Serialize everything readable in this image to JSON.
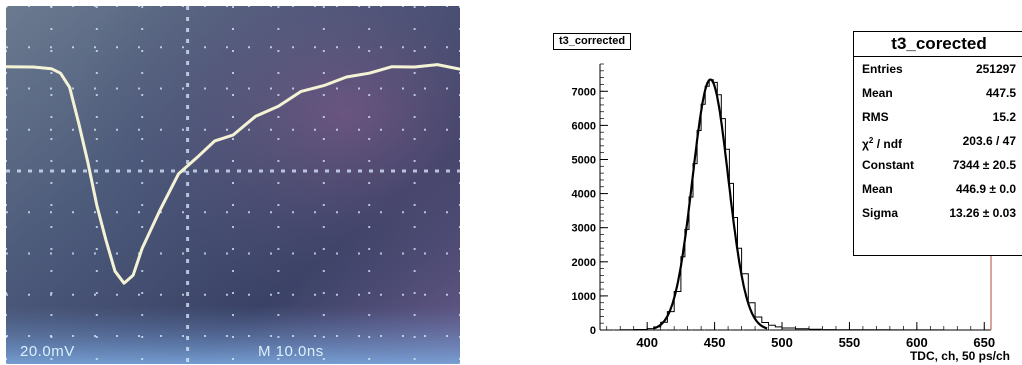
{
  "colors": {
    "scope_bg": "#3a4b6a",
    "scope_trace": "#f4f3d6",
    "scope_grid": "#dcecff",
    "hist_line": "#000000",
    "fit_line": "#000000",
    "axis_accent": "#b34a3a"
  },
  "scope": {
    "volts_readout": "20.0mV",
    "time_readout": "M 10.0ns"
  },
  "histogram": {
    "title_tag": "t3_corrected",
    "x_axis_label": "TDC, ch, 50 ps/ch"
  },
  "stats": {
    "title": "t3_corected",
    "rows": [
      {
        "label": "Entries",
        "value": "251297"
      },
      {
        "label": "Mean",
        "value": "447.5"
      },
      {
        "label": "RMS",
        "value": "15.2"
      },
      {
        "label": "χ² / ndf",
        "value": "203.6 / 47"
      },
      {
        "label": "Constant",
        "value": "7344 ± 20.5"
      },
      {
        "label": "Mean",
        "value": "446.9 ± 0.0"
      },
      {
        "label": "Sigma",
        "value": "13.26 ± 0.03"
      }
    ]
  },
  "chart_data": [
    {
      "type": "line",
      "grid": true,
      "xlim": [
        -4,
        6
      ],
      "ylim": [
        -4,
        4
      ],
      "series": [
        {
          "x": [
            -4,
            -3.4,
            -3.0,
            -2.8,
            -2.6,
            -2.4,
            -2.2,
            -2.0,
            -1.8,
            -1.6,
            -1.4,
            -1.2,
            -1.0,
            -0.6,
            -0.2,
            0.2,
            0.6,
            1.0,
            1.5,
            2.0,
            2.5,
            3.0,
            3.5,
            4.0,
            4.5,
            5.0,
            5.5,
            6.0
          ],
          "y": [
            2.5,
            2.55,
            2.45,
            2.4,
            2.0,
            1.2,
            0.2,
            -0.8,
            -1.7,
            -2.4,
            -2.75,
            -2.5,
            -1.9,
            -0.9,
            -0.1,
            0.35,
            0.7,
            0.9,
            1.3,
            1.6,
            1.9,
            2.1,
            2.25,
            2.4,
            2.5,
            2.55,
            2.55,
            2.5
          ]
        }
      ]
    },
    {
      "type": "bar",
      "xlim": [
        365,
        655
      ],
      "ylim": [
        0,
        7800
      ],
      "x_ticks": [
        400,
        450,
        500,
        550,
        600,
        650
      ],
      "y_ticks": [
        0,
        1000,
        2000,
        3000,
        4000,
        5000,
        6000,
        7000
      ],
      "series": [
        {
          "x": [
            380,
            390,
            400,
            405,
            410,
            415,
            420,
            425,
            428,
            431,
            434,
            437,
            440,
            443,
            446,
            447,
            449,
            452,
            455,
            458,
            461,
            464,
            467,
            470,
            475,
            480,
            485,
            490,
            495,
            500,
            510,
            520,
            530,
            540,
            560,
            580,
            600,
            620,
            640,
            650
          ],
          "y": [
            5,
            15,
            40,
            90,
            230,
            540,
            1130,
            2150,
            2950,
            3900,
            4880,
            5850,
            6620,
            7150,
            7344,
            7340,
            7260,
            6900,
            6200,
            5300,
            4300,
            3300,
            2400,
            1650,
            800,
            380,
            220,
            140,
            90,
            60,
            35,
            20,
            12,
            8,
            5,
            3,
            2,
            1,
            1,
            1
          ]
        }
      ]
    }
  ]
}
